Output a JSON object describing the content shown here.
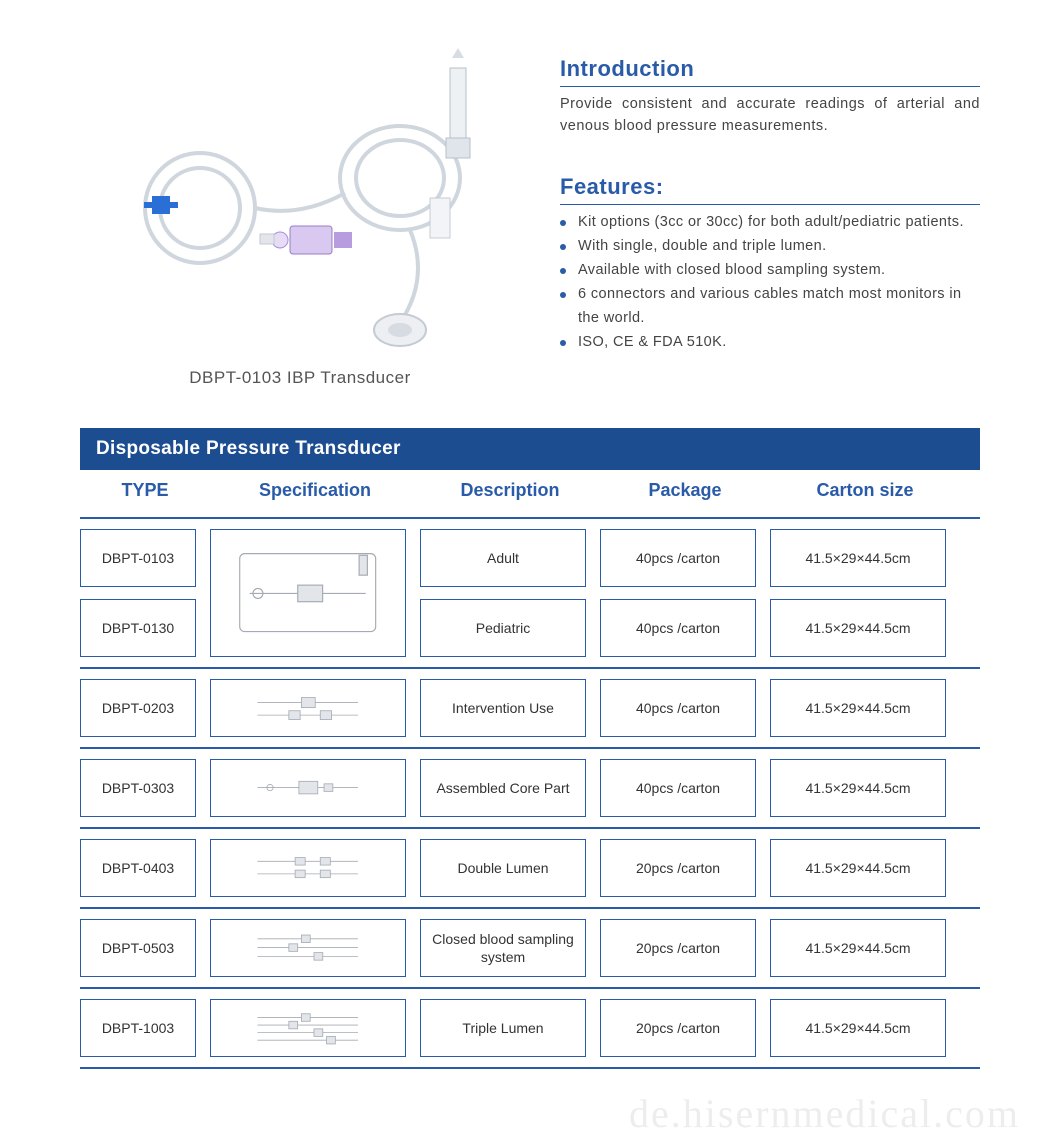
{
  "colors": {
    "brand_blue": "#2a5ba8",
    "title_bar_bg": "#1c4d90",
    "header_text": "#2a5ba8",
    "cell_border": "#2a5ba8",
    "ruler": "#2a5ba8"
  },
  "product": {
    "caption": "DBPT-0103 IBP Transducer"
  },
  "intro": {
    "heading": "Introduction",
    "text": "Provide consistent and accurate readings of arterial and venous blood pressure measurements."
  },
  "features": {
    "heading": "Features:",
    "items": [
      "Kit options (3cc or 30cc) for both adult/pediatric patients.",
      "With single, double and triple lumen.",
      "Available with closed blood sampling system.",
      "6 connectors and various cables match most monitors in the world.",
      "ISO, CE & FDA 510K."
    ]
  },
  "table": {
    "title": "Disposable Pressure Transducer",
    "headers": {
      "type": "TYPE",
      "spec": "Specification",
      "desc": "Description",
      "pkg": "Package",
      "size": "Carton  size"
    },
    "merged": {
      "spec_image": "diagram-merged",
      "rows": [
        {
          "type": "DBPT-0103",
          "desc": "Adult",
          "pkg": "40pcs /carton",
          "size": "41.5×29×44.5cm"
        },
        {
          "type": "DBPT-0130",
          "desc": "Pediatric",
          "pkg": "40pcs /carton",
          "size": "41.5×29×44.5cm"
        }
      ]
    },
    "rows": [
      {
        "type": "DBPT-0203",
        "desc": "Intervention Use",
        "pkg": "40pcs /carton",
        "size": "41.5×29×44.5cm"
      },
      {
        "type": "DBPT-0303",
        "desc": "Assembled Core Part",
        "pkg": "40pcs /carton",
        "size": "41.5×29×44.5cm"
      },
      {
        "type": "DBPT-0403",
        "desc": "Double Lumen",
        "pkg": "20pcs /carton",
        "size": "41.5×29×44.5cm"
      },
      {
        "type": "DBPT-0503",
        "desc": "Closed blood sampling system",
        "pkg": "20pcs /carton",
        "size": "41.5×29×44.5cm"
      },
      {
        "type": "DBPT-1003",
        "desc": "Triple Lumen",
        "pkg": "20pcs /carton",
        "size": "41.5×29×44.5cm"
      }
    ]
  },
  "watermark": "de.hisernmedical.com"
}
